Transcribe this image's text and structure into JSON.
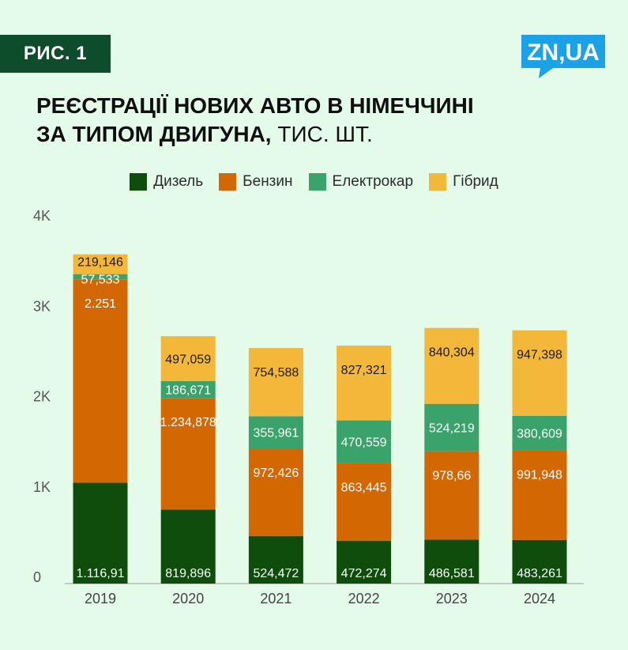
{
  "badge": "РИС. 1",
  "logo": "ZN,UA",
  "title": {
    "line1": "РЕЄСТРАЦІЇ НОВИХ АВТО В НІМЕЧЧИНІ",
    "line2_bold": "ЗА ТИПОМ ДВИГУНА,",
    "line2_light": "ТИС. ШТ."
  },
  "colors": {
    "diesel": "#0e4d0c",
    "petrol": "#d36702",
    "electric": "#3aa36b",
    "hybrid": "#f3b73a",
    "badge": "#0d4d2b",
    "logo": "#1ba1e6"
  },
  "chart_data": {
    "type": "bar",
    "stacked": true,
    "categories": [
      "2019",
      "2020",
      "2021",
      "2022",
      "2023",
      "2024"
    ],
    "series": [
      {
        "name": "Дизель",
        "color": "#0e4d0c",
        "values": [
          1116.91,
          819.896,
          524.472,
          472.274,
          486.581,
          483.261
        ],
        "labels": [
          "1.116,91",
          "819,896",
          "524,472",
          "472,274",
          "486,581",
          "483,261"
        ],
        "label_color": "#ffffff"
      },
      {
        "name": "Бензин",
        "color": "#d36702",
        "values": [
          2251,
          1234.878,
          972.426,
          863.445,
          978.66,
          991.948
        ],
        "labels": [
          "2.251",
          "1.234,878",
          "972,426",
          "863,445",
          "978,66",
          "991,948"
        ],
        "label_color": "#ffffff"
      },
      {
        "name": "Електрокар",
        "color": "#3aa36b",
        "values": [
          57.533,
          186.671,
          355.961,
          470.559,
          524.219,
          380.609
        ],
        "labels": [
          "57,533",
          "186,671",
          "355,961",
          "470,559",
          "524,219",
          "380,609"
        ],
        "label_color": "#ffffff"
      },
      {
        "name": "Гібрид",
        "color": "#f3b73a",
        "values": [
          219.146,
          497.059,
          754.588,
          827.321,
          840.304,
          947.398
        ],
        "labels": [
          "219,146",
          "497,059",
          "754,588",
          "827,321",
          "840,304",
          "947,398"
        ],
        "label_color": "#1a1a1a"
      }
    ],
    "yticks": [
      {
        "value": 0,
        "label": "0"
      },
      {
        "value": 1000,
        "label": "1K"
      },
      {
        "value": 2000,
        "label": "2K"
      },
      {
        "value": 3000,
        "label": "3K"
      },
      {
        "value": 4000,
        "label": "4K"
      }
    ],
    "ylim": [
      0,
      4000
    ],
    "grid": false,
    "legend_position": "top"
  }
}
